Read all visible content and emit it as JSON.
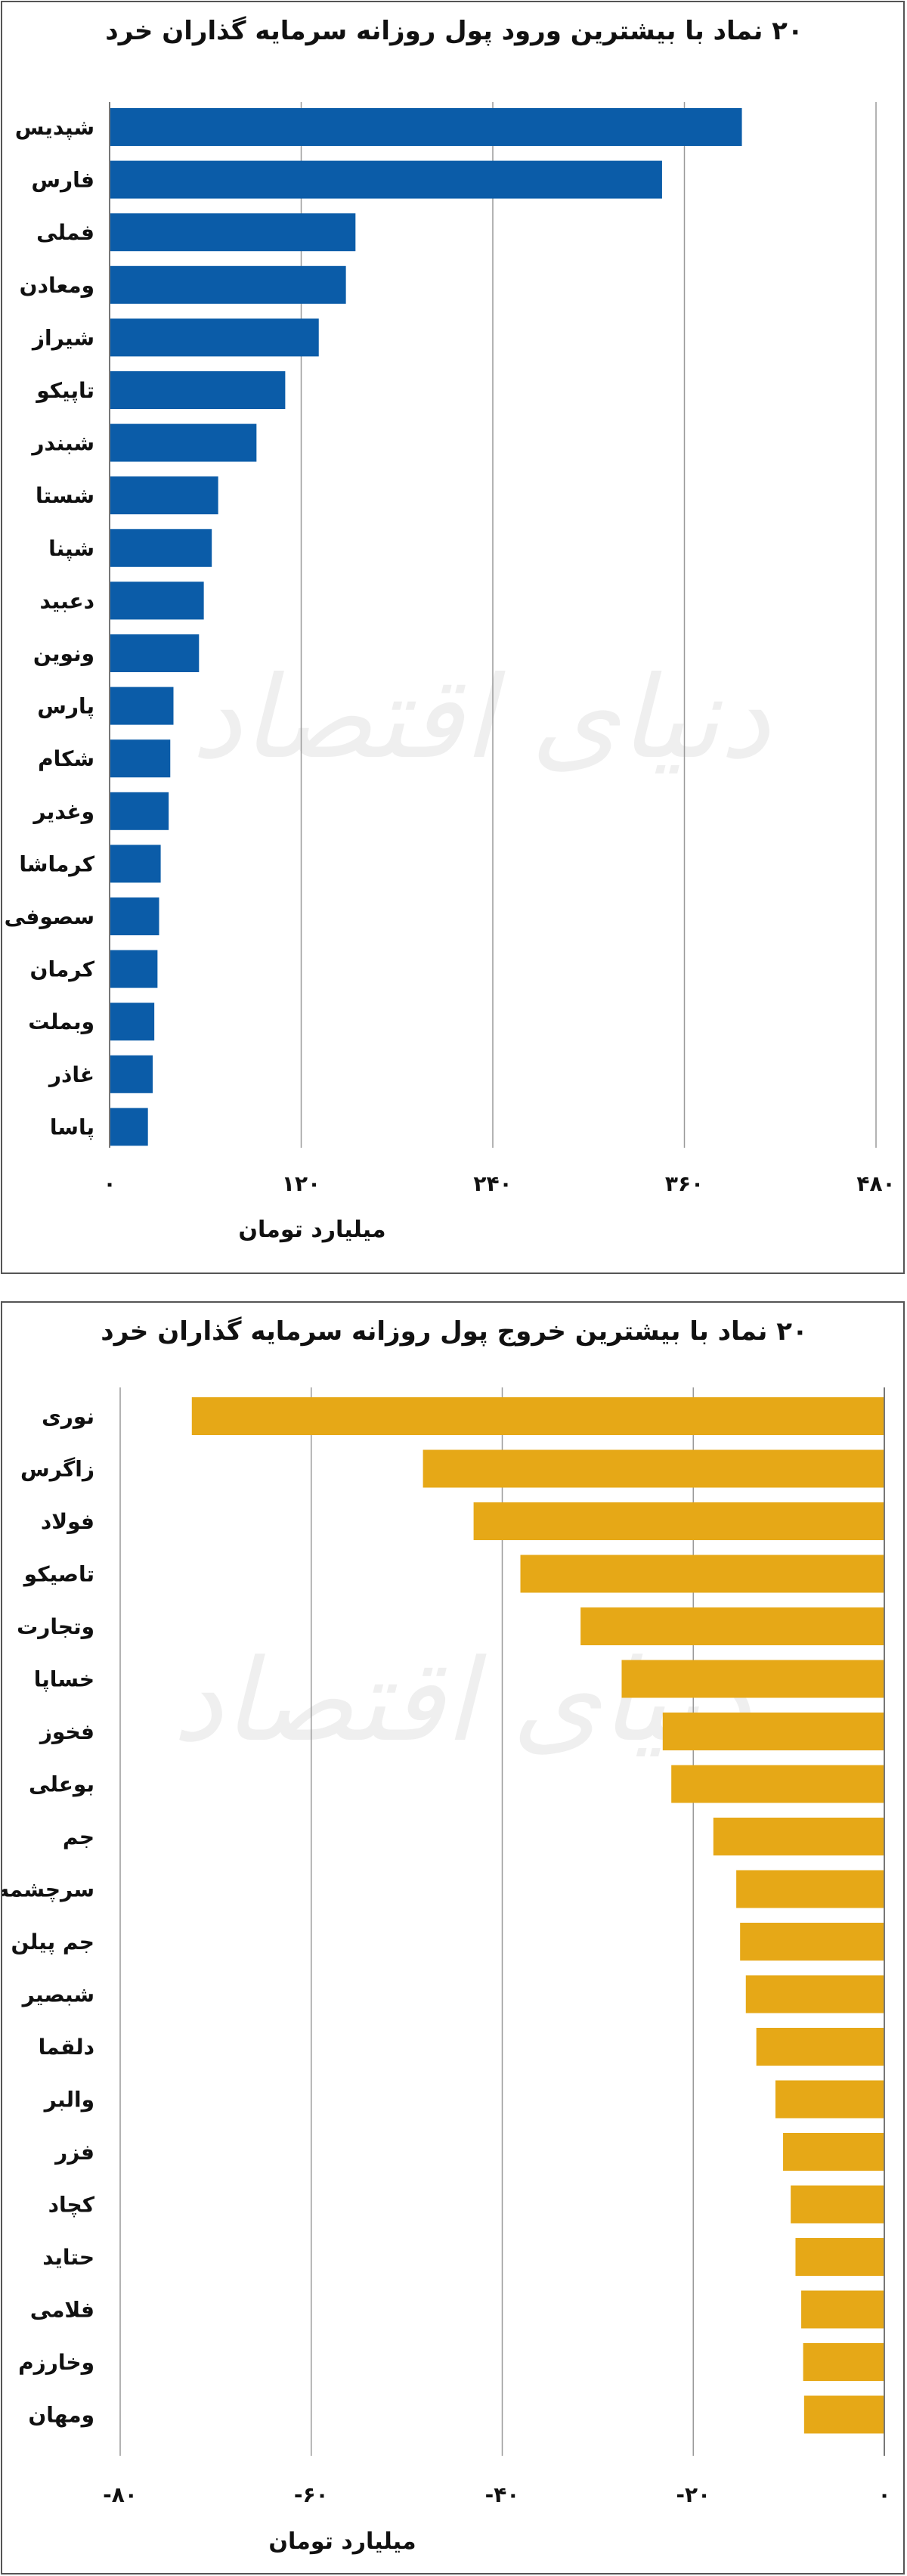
{
  "chart_data": [
    {
      "type": "bar",
      "orientation": "horizontal",
      "title": "۲۰ نماد با بیشترین ورود پول روزانه سرمایه گذاران خرد",
      "xlabel": "میلیارد تومان",
      "ylabel": "",
      "xlim": [
        0,
        480
      ],
      "ticks": [
        0,
        120,
        240,
        360,
        480
      ],
      "tick_labels": [
        "۰",
        "۱۲۰",
        "۲۴۰",
        "۳۶۰",
        "۴۸۰"
      ],
      "grid": true,
      "color": "#0b5ca8",
      "categories": [
        "شپدیس",
        "فارس",
        "فملی",
        "ومعادن",
        "شیراز",
        "تاپیکو",
        "شبندر",
        "شستا",
        "شپنا",
        "دعبید",
        "ونوین",
        "پارس",
        "شکام",
        "وغدیر",
        "کرماشا",
        "سصوفی",
        "کرمان",
        "وبملت",
        "غاذر",
        "پاسا"
      ],
      "values": [
        396,
        346,
        154,
        148,
        131,
        110,
        92,
        68,
        64,
        59,
        56,
        40,
        38,
        37,
        32,
        31,
        30,
        28,
        27,
        24
      ]
    },
    {
      "type": "bar",
      "orientation": "horizontal",
      "title": "۲۰ نماد با بیشترین خروج پول روزانه سرمایه گذاران خرد",
      "xlabel": "میلیارد تومان",
      "ylabel": "",
      "xlim": [
        -80,
        0
      ],
      "ticks": [
        -80,
        -60,
        -40,
        -20,
        0
      ],
      "tick_labels": [
        "-۸۰",
        "-۶۰",
        "-۴۰",
        "-۲۰",
        "۰"
      ],
      "grid": true,
      "color": "#e6a817",
      "categories": [
        "نوری",
        "زاگرس",
        "فولاد",
        "تاصیکو",
        "وتجارت",
        "خساپا",
        "فخوز",
        "بوعلی",
        "جم",
        "سرچشمه",
        "جم پیلن",
        "شبصیر",
        "دلقما",
        "والبر",
        "فزر",
        "کچاد",
        "حتاید",
        "فلامی",
        "وخارزم",
        "ومهان"
      ],
      "values": [
        -72.5,
        -48.3,
        -43,
        -38.1,
        -31.8,
        -27.5,
        -23.2,
        -22.3,
        -17.9,
        -15.5,
        -15.1,
        -14.5,
        -13.4,
        -11.4,
        -10.6,
        -9.8,
        -9.3,
        -8.7,
        -8.5,
        -8.4
      ]
    }
  ]
}
